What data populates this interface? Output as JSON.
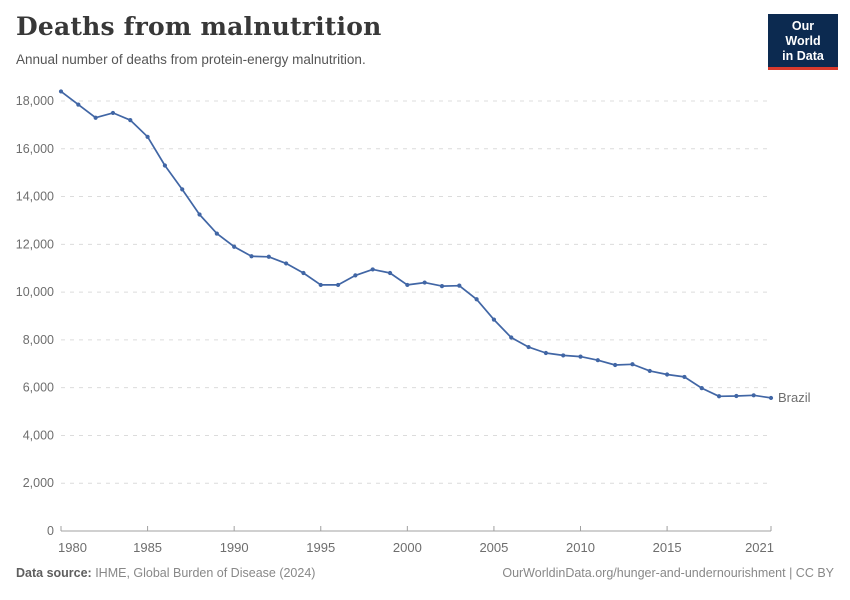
{
  "header": {
    "title": "Deaths from malnutrition",
    "subtitle": "Annual number of deaths from protein-energy malnutrition.",
    "logo": {
      "line1": "Our World",
      "line2": "in Data",
      "bg_color": "#0c2a50",
      "stripe_color": "#d93a2d",
      "text_color": "#ffffff"
    }
  },
  "chart_data": {
    "type": "line",
    "title": "Deaths from malnutrition",
    "entity_label": "Brazil",
    "x": [
      1980,
      1981,
      1982,
      1983,
      1984,
      1985,
      1986,
      1987,
      1988,
      1989,
      1990,
      1991,
      1992,
      1993,
      1994,
      1995,
      1996,
      1997,
      1998,
      1999,
      2000,
      2001,
      2002,
      2003,
      2004,
      2005,
      2006,
      2007,
      2008,
      2009,
      2010,
      2011,
      2012,
      2013,
      2014,
      2015,
      2016,
      2017,
      2018,
      2019,
      2020,
      2021
    ],
    "values": [
      18400,
      17850,
      17300,
      17500,
      17200,
      16500,
      15300,
      14300,
      13250,
      12450,
      11900,
      11500,
      11480,
      11200,
      10800,
      10300,
      10300,
      10700,
      10950,
      10800,
      10300,
      10400,
      10250,
      10270,
      9700,
      8850,
      8100,
      7700,
      7450,
      7350,
      7300,
      7150,
      6950,
      6980,
      6700,
      6550,
      6450,
      5980,
      5640,
      5650,
      5680,
      5570
    ],
    "ylim": [
      0,
      18400
    ],
    "ytick_interval": 2000,
    "ytick_max": 18000,
    "xticks": [
      1980,
      1985,
      1990,
      1995,
      2000,
      2005,
      2010,
      2015,
      2021
    ],
    "grid": true,
    "legend_position": "end-of-line",
    "line_color": "#4166a5",
    "gridline_color": "#dcdcdc",
    "axis_color": "#a0a0a0",
    "tick_label_color": "#6e6e6e"
  },
  "footer": {
    "datasource_label": "Data source:",
    "datasource_value": " IHME, Global Burden of Disease (2024)",
    "link_text": "OurWorldinData.org/hunger-and-undernourishment | CC BY"
  }
}
